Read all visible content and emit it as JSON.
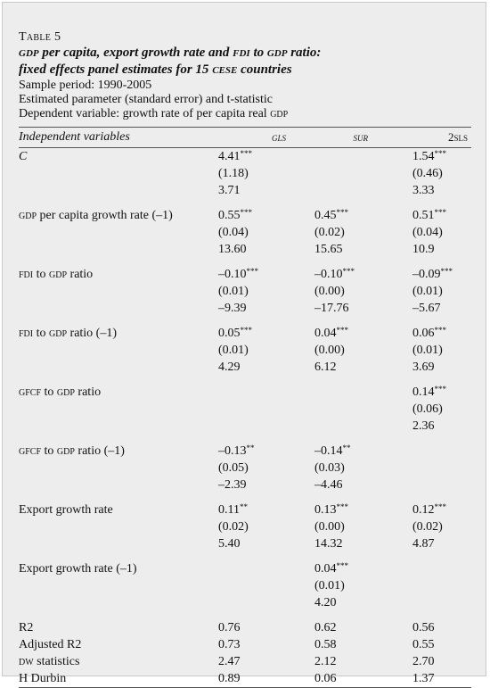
{
  "table": {
    "label": "Table 5",
    "title": [
      {
        "text": "gdp",
        "sc": true
      },
      {
        "text": " per capita, export growth rate and ",
        "sc": false
      },
      {
        "text": "fdi",
        "sc": true
      },
      {
        "text": " to ",
        "sc": false
      },
      {
        "text": "gdp",
        "sc": true
      },
      {
        "text": " ratio:",
        "sc": false
      }
    ],
    "title_line2": [
      {
        "text": "fixed effects panel estimates for 15 ",
        "sc": false
      },
      {
        "text": "cese",
        "sc": true
      },
      {
        "text": " countries",
        "sc": false
      }
    ],
    "sample_period": "Sample period: 1990-2005",
    "estimated": "Estimated parameter (standard error) and t-statistic",
    "dependent": [
      {
        "text": "Dependent variable: growth rate of per capita real ",
        "sc": false
      },
      {
        "text": "gdp",
        "sc": true
      }
    ],
    "headers": [
      "Independent variables",
      "gls",
      "sur",
      "2sls"
    ],
    "rows": [
      {
        "label": [
          {
            "text": "C",
            "sc": false
          }
        ],
        "italic": true,
        "gls": [
          "4.41",
          "***",
          "(1.18)",
          "3.71"
        ],
        "sur": [
          "",
          "",
          "",
          ""
        ],
        "tsls": [
          "1.54",
          "***",
          "(0.46)",
          "3.33"
        ]
      },
      {
        "label": [
          {
            "text": "gdp",
            "sc": true
          },
          {
            "text": " per capita growth rate (–1)",
            "sc": false
          }
        ],
        "gls": [
          "0.55",
          "***",
          "(0.04)",
          "13.60"
        ],
        "sur": [
          "0.45",
          "***",
          "(0.02)",
          "15.65"
        ],
        "tsls": [
          "0.51",
          "***",
          "(0.04)",
          "10.9"
        ]
      },
      {
        "label": [
          {
            "text": "fdi",
            "sc": true
          },
          {
            "text": " to ",
            "sc": false
          },
          {
            "text": "gdp",
            "sc": true
          },
          {
            "text": " ratio",
            "sc": false
          }
        ],
        "gls": [
          "–0.10",
          "***",
          "(0.01)",
          "–9.39"
        ],
        "sur": [
          "–0.10",
          "***",
          "(0.00)",
          "–17.76"
        ],
        "tsls": [
          "–0.09",
          "***",
          "(0.01)",
          "–5.67"
        ]
      },
      {
        "label": [
          {
            "text": "fdi",
            "sc": true
          },
          {
            "text": " to ",
            "sc": false
          },
          {
            "text": "gdp",
            "sc": true
          },
          {
            "text": " ratio (–1)",
            "sc": false
          }
        ],
        "gls": [
          "0.05",
          "***",
          "(0.01)",
          "4.29"
        ],
        "sur": [
          "0.04",
          "***",
          "(0.00)",
          "6.12"
        ],
        "tsls": [
          "0.06",
          "***",
          "(0.01)",
          "3.69"
        ]
      },
      {
        "label": [
          {
            "text": "gfcf",
            "sc": true
          },
          {
            "text": " to ",
            "sc": false
          },
          {
            "text": "gdp",
            "sc": true
          },
          {
            "text": " ratio",
            "sc": false
          }
        ],
        "gls": [
          "",
          "",
          "",
          ""
        ],
        "sur": [
          "",
          "",
          "",
          ""
        ],
        "tsls": [
          "0.14",
          "***",
          "(0.06)",
          "2.36"
        ]
      },
      {
        "label": [
          {
            "text": "gfcf",
            "sc": true
          },
          {
            "text": " to ",
            "sc": false
          },
          {
            "text": "gdp",
            "sc": true
          },
          {
            "text": " ratio (–1)",
            "sc": false
          }
        ],
        "gls": [
          "–0.13",
          "**",
          "(0.05)",
          "–2.39"
        ],
        "sur": [
          "–0.14",
          "**",
          "(0.03)",
          "–4.46"
        ],
        "tsls": [
          "",
          "",
          "",
          ""
        ]
      },
      {
        "label": [
          {
            "text": "Export growth rate",
            "sc": false
          }
        ],
        "gls": [
          "0.11",
          "**",
          "(0.02)",
          "5.40"
        ],
        "sur": [
          "0.13",
          "***",
          "(0.00)",
          "14.32"
        ],
        "tsls": [
          "0.12",
          "***",
          "(0.02)",
          "4.87"
        ]
      },
      {
        "label": [
          {
            "text": "Export growth rate (–1)",
            "sc": false
          }
        ],
        "gls": [
          "",
          "",
          "",
          ""
        ],
        "sur": [
          "0.04",
          "***",
          "(0.01)",
          "4.20"
        ],
        "tsls": [
          "",
          "",
          "",
          ""
        ]
      }
    ],
    "stats": [
      {
        "label": [
          {
            "text": "R2",
            "sc": false
          }
        ],
        "gls": "0.76",
        "sur": "0.62",
        "tsls": "0.56"
      },
      {
        "label": [
          {
            "text": "Adjusted R2",
            "sc": false
          }
        ],
        "gls": "0.73",
        "sur": "0.58",
        "tsls": "0.55"
      },
      {
        "label": [
          {
            "text": "dw",
            "sc": true
          },
          {
            "text": " statistics",
            "sc": false
          }
        ],
        "gls": "2.47",
        "sur": "2.12",
        "tsls": "2.70"
      },
      {
        "label": [
          {
            "text": "H Durbin",
            "sc": false
          }
        ],
        "gls": "0.89",
        "sur": "0.06",
        "tsls": "1.37"
      }
    ]
  }
}
